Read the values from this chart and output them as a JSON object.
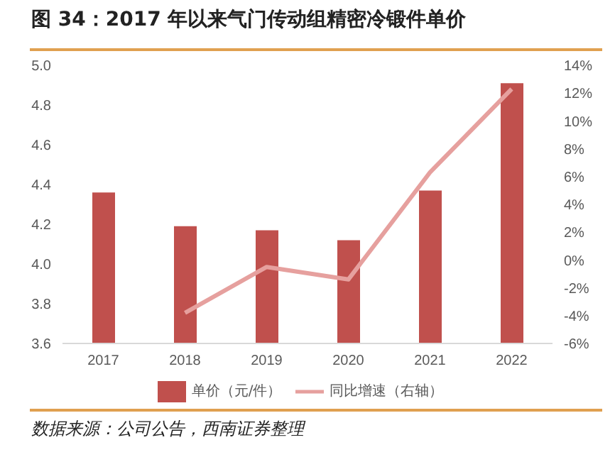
{
  "chart_data": {
    "type": "bar",
    "title": "图 34：2017 年以来气门传动组精密冷锻件单价",
    "categories": [
      "2017",
      "2018",
      "2019",
      "2020",
      "2021",
      "2022"
    ],
    "series": [
      {
        "name": "单价（元/件）",
        "color": "#c0504d",
        "values": [
          4.36,
          4.19,
          4.17,
          4.12,
          4.37,
          4.91
        ]
      },
      {
        "name": "同比增速（右轴）",
        "type": "line",
        "axis": "y2",
        "color": "#e6a09e",
        "values": [
          null,
          -3.8,
          -0.5,
          -1.4,
          6.3,
          12.3
        ]
      }
    ],
    "ylim": [
      3.6,
      5.0
    ],
    "yticks": [
      3.6,
      {
        "value": 3.8,
        "label": "3.8"
      },
      {
        "value": 4.0,
        "label": "4.0"
      },
      4.2,
      4.4,
      4.6,
      4.8,
      {
        "value": 5.0,
        "label": "5.0"
      }
    ],
    "y2lim": [
      -6,
      14
    ],
    "y2ticks": [
      {
        "value": -6,
        "label": "-6%"
      },
      {
        "value": -4,
        "label": "-4%"
      },
      {
        "value": -2,
        "label": "-2%"
      },
      {
        "value": 0,
        "label": "0%"
      },
      {
        "value": 2,
        "label": "2%"
      },
      {
        "value": 4,
        "label": "4%"
      },
      {
        "value": 6,
        "label": "6%"
      },
      {
        "value": 8,
        "label": "8%"
      },
      {
        "value": 10,
        "label": "10%"
      },
      {
        "value": 12,
        "label": "12%"
      },
      {
        "value": 14,
        "label": "14%"
      }
    ],
    "grid": false,
    "legend": "bottom",
    "marker": "none",
    "line_style": "solid",
    "annotations": [
      "数据来源：公司公告，西南证券整理"
    ]
  }
}
